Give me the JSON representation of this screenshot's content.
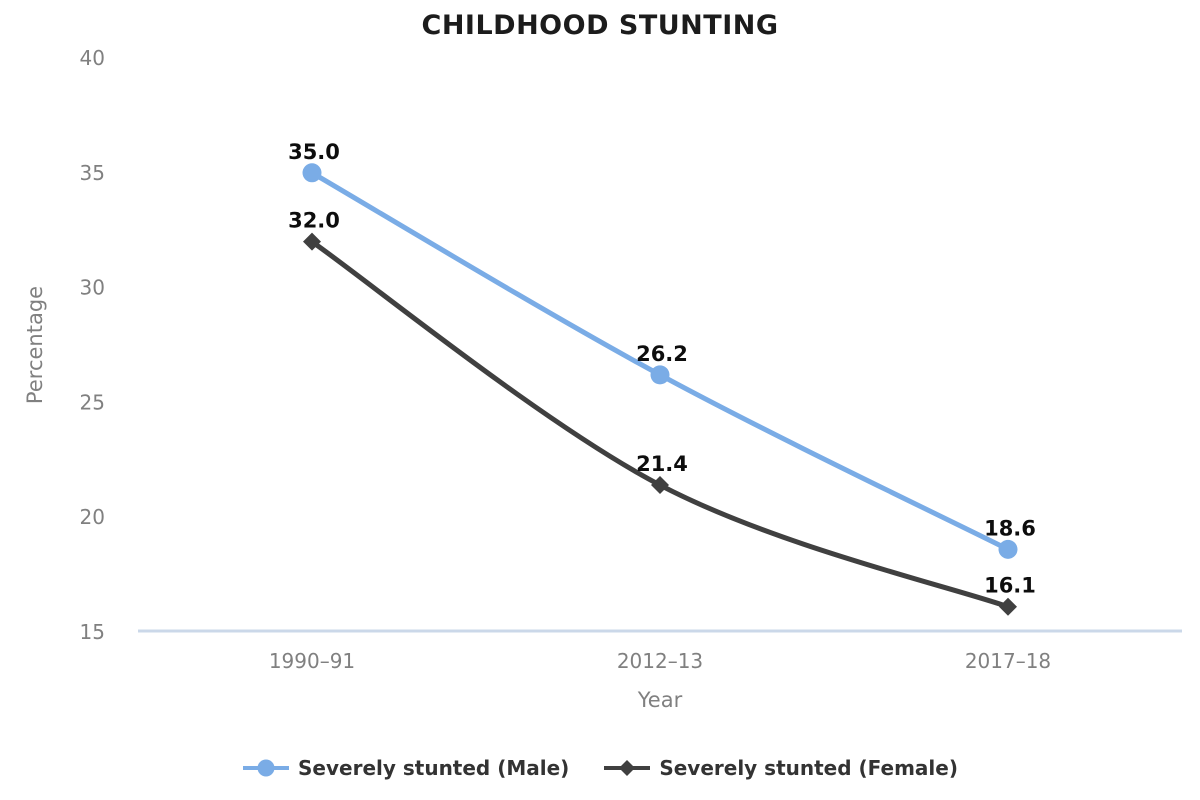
{
  "chart_data": {
    "type": "line",
    "title": "CHILDHOOD STUNTING",
    "xlabel": "Year",
    "ylabel": "Percentage",
    "categories": [
      "1990–91",
      "2012–13",
      "2017–18"
    ],
    "series": [
      {
        "name": "Severely stunted (Male)",
        "values": [
          35.0,
          26.2,
          18.6
        ],
        "color": "#7AACE6",
        "marker": "circle"
      },
      {
        "name": "Severely stunted (Female)",
        "values": [
          32.0,
          21.4,
          16.1
        ],
        "color": "#404040",
        "marker": "diamond"
      }
    ],
    "ylim": [
      15,
      40
    ],
    "yticks": [
      15,
      20,
      25,
      30,
      35,
      40
    ],
    "grid": false,
    "legend_position": "bottom",
    "value_labels": true,
    "smooth": true
  },
  "colors": {
    "axis_line": "#CBD8E9",
    "tick_text": "#808080",
    "value_label_text": "#0D0D0D",
    "title_text": "#1C1C1C",
    "legend_text": "#333333"
  }
}
